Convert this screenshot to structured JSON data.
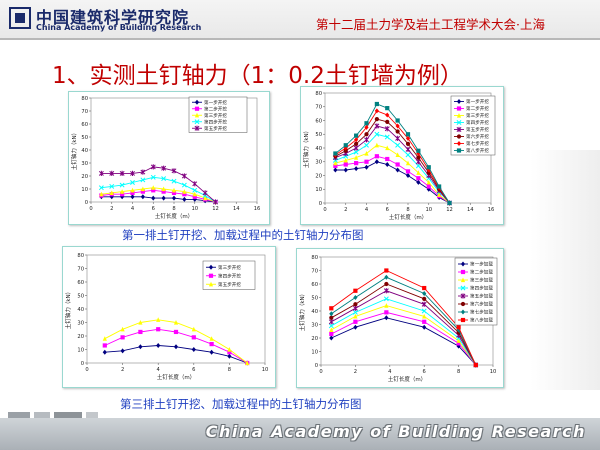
{
  "header": {
    "logo_cn": "中国建筑科学研究院",
    "logo_en": "China Academy of Building Research",
    "conference": "第十二届土力学及岩土工程学术大会·上海",
    "colors": {
      "conference": "#c00000",
      "logo": "#1a2a6a"
    }
  },
  "title": "1、实测土钉轴力（1：0.2土钉墙为例）",
  "captions": {
    "row1": "第一排土钉开挖、加载过程中的土钉轴力分布图",
    "row3": "第三排土钉开挖、加载过程中的土钉轴力分布图"
  },
  "footer": {
    "text": "China Academy of Building Research"
  },
  "chart_data": [
    {
      "type": "line",
      "xlabel": "土钉长度（m）",
      "ylabel": "土钉轴力（kN）",
      "xlim": [
        0,
        16
      ],
      "ylim": [
        0,
        80
      ],
      "xticks": [
        0,
        2,
        4,
        6,
        8,
        10,
        12,
        14,
        16
      ],
      "yticks": [
        0,
        10,
        20,
        30,
        40,
        50,
        60,
        70,
        80
      ],
      "legend_position": "top-right",
      "x": [
        1,
        2,
        3,
        4,
        5,
        6,
        7,
        8,
        9,
        10,
        11,
        12
      ],
      "series": [
        {
          "name": "第一步开挖",
          "values": [
            4,
            4,
            4,
            4,
            4,
            3,
            3,
            3,
            2,
            2,
            1,
            0
          ],
          "color": "#000080",
          "marker": "diamond"
        },
        {
          "name": "第二步开挖",
          "values": [
            5,
            6,
            6,
            7,
            8,
            9,
            8,
            7,
            6,
            4,
            2,
            0
          ],
          "color": "#ff00ff",
          "marker": "square"
        },
        {
          "name": "第三步开挖",
          "values": [
            6,
            7,
            8,
            9,
            10,
            11,
            10,
            9,
            8,
            6,
            3,
            0
          ],
          "color": "#ffff00",
          "marker": "triangle"
        },
        {
          "name": "第四步开挖",
          "values": [
            11,
            12,
            13,
            15,
            17,
            19,
            18,
            16,
            13,
            9,
            5,
            0
          ],
          "color": "#00ffff",
          "marker": "x"
        },
        {
          "name": "第五步开挖",
          "values": [
            22,
            22,
            22,
            22,
            23,
            27,
            26,
            24,
            20,
            14,
            7,
            0
          ],
          "color": "#800080",
          "marker": "star"
        }
      ]
    },
    {
      "type": "line",
      "xlabel": "土钉长度（m）",
      "ylabel": "土钉轴力（kN）",
      "xlim": [
        0,
        16
      ],
      "ylim": [
        0,
        80
      ],
      "xticks": [
        0,
        2,
        4,
        6,
        8,
        10,
        12,
        14,
        16
      ],
      "yticks": [
        0,
        10,
        20,
        30,
        40,
        50,
        60,
        70,
        80
      ],
      "legend_position": "top-right",
      "x": [
        1,
        2,
        3,
        4,
        5,
        6,
        7,
        8,
        9,
        10,
        11,
        12
      ],
      "series": [
        {
          "name": "第一步开挖",
          "values": [
            24,
            24,
            25,
            26,
            30,
            28,
            24,
            20,
            15,
            10,
            4,
            0
          ],
          "color": "#000080",
          "marker": "diamond"
        },
        {
          "name": "第二步开挖",
          "values": [
            27,
            28,
            29,
            30,
            34,
            32,
            28,
            23,
            18,
            12,
            5,
            0
          ],
          "color": "#ff00ff",
          "marker": "square"
        },
        {
          "name": "第三步开挖",
          "values": [
            29,
            31,
            33,
            36,
            42,
            40,
            35,
            29,
            22,
            15,
            6,
            0
          ],
          "color": "#ffff00",
          "marker": "triangle"
        },
        {
          "name": "第四步开挖",
          "values": [
            31,
            34,
            37,
            42,
            50,
            48,
            42,
            35,
            27,
            18,
            8,
            0
          ],
          "color": "#00ffff",
          "marker": "x"
        },
        {
          "name": "第五步开挖",
          "values": [
            33,
            36,
            40,
            46,
            56,
            54,
            47,
            39,
            30,
            20,
            9,
            0
          ],
          "color": "#800080",
          "marker": "star"
        },
        {
          "name": "第六步开挖",
          "values": [
            34,
            38,
            43,
            50,
            61,
            59,
            52,
            43,
            33,
            22,
            10,
            0
          ],
          "color": "#800000",
          "marker": "circle"
        },
        {
          "name": "第七步开挖",
          "values": [
            35,
            40,
            46,
            55,
            67,
            64,
            56,
            47,
            36,
            24,
            11,
            0
          ],
          "color": "#ff0000",
          "marker": "diamond"
        },
        {
          "name": "第八步开挖",
          "values": [
            36,
            42,
            49,
            58,
            72,
            69,
            60,
            50,
            38,
            26,
            12,
            0
          ],
          "color": "#008080",
          "marker": "square"
        }
      ]
    },
    {
      "type": "line",
      "xlabel": "土钉长度（m）",
      "ylabel": "土钉轴力（kN）",
      "xlim": [
        0,
        10
      ],
      "ylim": [
        0,
        80
      ],
      "xticks": [
        0,
        2,
        4,
        6,
        8,
        10
      ],
      "yticks": [
        0,
        10,
        20,
        30,
        40,
        50,
        60,
        70,
        80
      ],
      "legend_position": "top-right",
      "x": [
        1,
        2,
        3,
        4,
        5,
        6,
        7,
        8,
        9
      ],
      "series": [
        {
          "name": "第三步开挖",
          "values": [
            8,
            9,
            12,
            13,
            12,
            10,
            8,
            5,
            0
          ],
          "color": "#000080",
          "marker": "diamond"
        },
        {
          "name": "第四步开挖",
          "values": [
            13,
            19,
            23,
            25,
            23,
            19,
            14,
            8,
            0
          ],
          "color": "#ff00ff",
          "marker": "square"
        },
        {
          "name": "第五步开挖",
          "values": [
            18,
            25,
            30,
            32,
            30,
            25,
            18,
            10,
            0
          ],
          "color": "#ffff00",
          "marker": "triangle"
        }
      ]
    },
    {
      "type": "line",
      "xlabel": "土钉长度（m）",
      "ylabel": "土钉轴力（kN）",
      "xlim": [
        0,
        10
      ],
      "ylim": [
        0,
        80
      ],
      "xticks": [
        0,
        2,
        4,
        6,
        8,
        10
      ],
      "yticks": [
        0,
        10,
        20,
        30,
        40,
        50,
        60,
        70,
        80
      ],
      "legend_position": "top-right",
      "x": [
        0.6,
        2,
        3.8,
        6,
        8,
        9
      ],
      "series": [
        {
          "name": "第一步加载",
          "values": [
            20,
            28,
            35,
            28,
            14,
            0
          ],
          "color": "#000080",
          "marker": "diamond"
        },
        {
          "name": "第二步加载",
          "values": [
            23,
            32,
            39,
            32,
            16,
            0
          ],
          "color": "#ff00ff",
          "marker": "square"
        },
        {
          "name": "第三步加载",
          "values": [
            26,
            36,
            44,
            36,
            18,
            0
          ],
          "color": "#ffff00",
          "marker": "triangle"
        },
        {
          "name": "第四步加载",
          "values": [
            29,
            39,
            49,
            40,
            20,
            0
          ],
          "color": "#00ffff",
          "marker": "x"
        },
        {
          "name": "第五步加载",
          "values": [
            32,
            42,
            55,
            45,
            22,
            0
          ],
          "color": "#800080",
          "marker": "star"
        },
        {
          "name": "第六步加载",
          "values": [
            35,
            45,
            60,
            49,
            24,
            0
          ],
          "color": "#800000",
          "marker": "circle"
        },
        {
          "name": "第七步加载",
          "values": [
            38,
            50,
            65,
            53,
            26,
            0
          ],
          "color": "#008080",
          "marker": "diamond"
        },
        {
          "name": "第八步加载",
          "values": [
            42,
            55,
            70,
            57,
            28,
            0
          ],
          "color": "#ff0000",
          "marker": "square"
        }
      ]
    }
  ]
}
